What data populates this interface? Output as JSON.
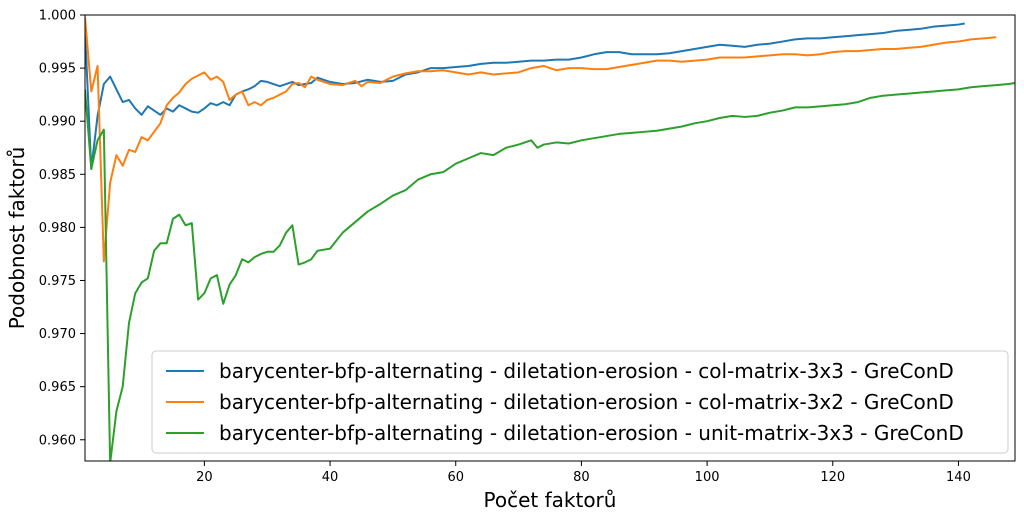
{
  "chart_data": {
    "type": "line",
    "xlabel": "Počet faktorů",
    "ylabel": "Podobnost faktorů",
    "xlim": [
      1,
      149
    ],
    "ylim": [
      0.958,
      1.0
    ],
    "xticks": [
      20,
      40,
      60,
      80,
      100,
      120,
      140
    ],
    "xtick_labels": [
      "20",
      "40",
      "60",
      "80",
      "100",
      "120",
      "140"
    ],
    "yticks": [
      0.96,
      0.965,
      0.97,
      0.975,
      0.98,
      0.985,
      0.99,
      0.995,
      1.0
    ],
    "ytick_labels": [
      "0.960",
      "0.965",
      "0.970",
      "0.975",
      "0.980",
      "0.985",
      "0.990",
      "0.995",
      "1.000"
    ],
    "grid": false,
    "legend_position": "lower-right",
    "colors": [
      "#1f77b4",
      "#ff7f0e",
      "#2ca02c"
    ],
    "series": [
      {
        "name": "barycenter-bfp-alternating - diletation-erosion - col-matrix-3x3 - GreConD",
        "color": "#1f77b4",
        "points": [
          [
            1,
            0.9985
          ],
          [
            2,
            0.9855
          ],
          [
            3,
            0.9905
          ],
          [
            4,
            0.9935
          ],
          [
            5,
            0.9942
          ],
          [
            6,
            0.993
          ],
          [
            7,
            0.9918
          ],
          [
            8,
            0.992
          ],
          [
            9,
            0.9912
          ],
          [
            10,
            0.9906
          ],
          [
            11,
            0.9914
          ],
          [
            12,
            0.991
          ],
          [
            13,
            0.9906
          ],
          [
            14,
            0.9912
          ],
          [
            15,
            0.9909
          ],
          [
            16,
            0.9915
          ],
          [
            17,
            0.9912
          ],
          [
            18,
            0.9909
          ],
          [
            19,
            0.9908
          ],
          [
            20,
            0.9912
          ],
          [
            21,
            0.9917
          ],
          [
            22,
            0.9915
          ],
          [
            23,
            0.9918
          ],
          [
            24,
            0.9915
          ],
          [
            25,
            0.9925
          ],
          [
            26,
            0.9928
          ],
          [
            27,
            0.993
          ],
          [
            28,
            0.9933
          ],
          [
            29,
            0.9938
          ],
          [
            30,
            0.9937
          ],
          [
            31,
            0.9935
          ],
          [
            32,
            0.9933
          ],
          [
            33,
            0.9935
          ],
          [
            34,
            0.9937
          ],
          [
            35,
            0.9934
          ],
          [
            36,
            0.9935
          ],
          [
            37,
            0.9936
          ],
          [
            38,
            0.9941
          ],
          [
            39,
            0.9939
          ],
          [
            40,
            0.9937
          ],
          [
            42,
            0.9935
          ],
          [
            44,
            0.9936
          ],
          [
            46,
            0.9939
          ],
          [
            48,
            0.9937
          ],
          [
            50,
            0.9938
          ],
          [
            52,
            0.9944
          ],
          [
            54,
            0.9946
          ],
          [
            56,
            0.995
          ],
          [
            58,
            0.995
          ],
          [
            60,
            0.9951
          ],
          [
            62,
            0.9952
          ],
          [
            64,
            0.9954
          ],
          [
            66,
            0.9955
          ],
          [
            68,
            0.9955
          ],
          [
            70,
            0.9956
          ],
          [
            72,
            0.9957
          ],
          [
            74,
            0.9957
          ],
          [
            76,
            0.9958
          ],
          [
            78,
            0.9958
          ],
          [
            80,
            0.996
          ],
          [
            82,
            0.9963
          ],
          [
            84,
            0.9965
          ],
          [
            86,
            0.9965
          ],
          [
            88,
            0.9963
          ],
          [
            90,
            0.9963
          ],
          [
            92,
            0.9963
          ],
          [
            94,
            0.9964
          ],
          [
            96,
            0.9966
          ],
          [
            98,
            0.9968
          ],
          [
            100,
            0.997
          ],
          [
            102,
            0.9972
          ],
          [
            104,
            0.9971
          ],
          [
            106,
            0.997
          ],
          [
            108,
            0.9972
          ],
          [
            110,
            0.9973
          ],
          [
            112,
            0.9975
          ],
          [
            114,
            0.9977
          ],
          [
            116,
            0.9978
          ],
          [
            118,
            0.9978
          ],
          [
            120,
            0.9979
          ],
          [
            122,
            0.998
          ],
          [
            124,
            0.9981
          ],
          [
            126,
            0.9982
          ],
          [
            128,
            0.9983
          ],
          [
            130,
            0.9985
          ],
          [
            132,
            0.9986
          ],
          [
            134,
            0.9987
          ],
          [
            136,
            0.9989
          ],
          [
            138,
            0.999
          ],
          [
            140,
            0.9991
          ],
          [
            141,
            0.9992
          ]
        ]
      },
      {
        "name": "barycenter-bfp-alternating - diletation-erosion - col-matrix-3x2 - GreConD",
        "color": "#ff7f0e",
        "points": [
          [
            1,
            0.9998
          ],
          [
            2,
            0.9928
          ],
          [
            3,
            0.9952
          ],
          [
            4,
            0.9768
          ],
          [
            5,
            0.9842
          ],
          [
            6,
            0.9868
          ],
          [
            7,
            0.9858
          ],
          [
            8,
            0.9873
          ],
          [
            9,
            0.9871
          ],
          [
            10,
            0.9885
          ],
          [
            11,
            0.9882
          ],
          [
            12,
            0.989
          ],
          [
            13,
            0.9898
          ],
          [
            14,
            0.9915
          ],
          [
            15,
            0.9922
          ],
          [
            16,
            0.9927
          ],
          [
            17,
            0.9935
          ],
          [
            18,
            0.994
          ],
          [
            19,
            0.9943
          ],
          [
            20,
            0.9946
          ],
          [
            21,
            0.9939
          ],
          [
            22,
            0.9942
          ],
          [
            23,
            0.9937
          ],
          [
            24,
            0.992
          ],
          [
            25,
            0.9925
          ],
          [
            26,
            0.9928
          ],
          [
            27,
            0.9915
          ],
          [
            28,
            0.9918
          ],
          [
            29,
            0.9915
          ],
          [
            30,
            0.992
          ],
          [
            31,
            0.9922
          ],
          [
            32,
            0.9925
          ],
          [
            33,
            0.9928
          ],
          [
            34,
            0.9935
          ],
          [
            35,
            0.9936
          ],
          [
            36,
            0.9932
          ],
          [
            37,
            0.9942
          ],
          [
            38,
            0.9939
          ],
          [
            39,
            0.9937
          ],
          [
            40,
            0.9935
          ],
          [
            42,
            0.9934
          ],
          [
            44,
            0.9938
          ],
          [
            45,
            0.9933
          ],
          [
            46,
            0.9937
          ],
          [
            48,
            0.9936
          ],
          [
            50,
            0.9942
          ],
          [
            52,
            0.9945
          ],
          [
            54,
            0.9947
          ],
          [
            56,
            0.9947
          ],
          [
            58,
            0.9948
          ],
          [
            60,
            0.9946
          ],
          [
            62,
            0.9944
          ],
          [
            64,
            0.9946
          ],
          [
            66,
            0.9944
          ],
          [
            68,
            0.9945
          ],
          [
            70,
            0.9946
          ],
          [
            72,
            0.995
          ],
          [
            74,
            0.9952
          ],
          [
            76,
            0.9948
          ],
          [
            78,
            0.995
          ],
          [
            80,
            0.995
          ],
          [
            82,
            0.9949
          ],
          [
            84,
            0.9949
          ],
          [
            86,
            0.9951
          ],
          [
            88,
            0.9953
          ],
          [
            90,
            0.9955
          ],
          [
            92,
            0.9957
          ],
          [
            94,
            0.9957
          ],
          [
            96,
            0.9956
          ],
          [
            98,
            0.9957
          ],
          [
            100,
            0.9958
          ],
          [
            102,
            0.996
          ],
          [
            104,
            0.996
          ],
          [
            106,
            0.996
          ],
          [
            108,
            0.9961
          ],
          [
            110,
            0.9962
          ],
          [
            112,
            0.9963
          ],
          [
            114,
            0.9963
          ],
          [
            116,
            0.9962
          ],
          [
            118,
            0.9963
          ],
          [
            120,
            0.9965
          ],
          [
            122,
            0.9966
          ],
          [
            124,
            0.9966
          ],
          [
            126,
            0.9967
          ],
          [
            128,
            0.9968
          ],
          [
            130,
            0.9968
          ],
          [
            132,
            0.9969
          ],
          [
            134,
            0.997
          ],
          [
            136,
            0.9972
          ],
          [
            138,
            0.9974
          ],
          [
            140,
            0.9975
          ],
          [
            142,
            0.9977
          ],
          [
            144,
            0.9978
          ],
          [
            146,
            0.9979
          ]
        ]
      },
      {
        "name": "barycenter-bfp-alternating - diletation-erosion - unit-matrix-3x3 - GreConD",
        "color": "#2ca02c",
        "points": [
          [
            1,
            0.993
          ],
          [
            2,
            0.9855
          ],
          [
            3,
            0.9882
          ],
          [
            4,
            0.9892
          ],
          [
            5,
            0.9578
          ],
          [
            6,
            0.9627
          ],
          [
            7,
            0.965
          ],
          [
            8,
            0.971
          ],
          [
            9,
            0.9738
          ],
          [
            10,
            0.9748
          ],
          [
            11,
            0.9752
          ],
          [
            12,
            0.9778
          ],
          [
            13,
            0.9785
          ],
          [
            14,
            0.9785
          ],
          [
            15,
            0.9808
          ],
          [
            16,
            0.9812
          ],
          [
            17,
            0.9802
          ],
          [
            18,
            0.9804
          ],
          [
            19,
            0.9732
          ],
          [
            20,
            0.9738
          ],
          [
            21,
            0.9752
          ],
          [
            22,
            0.9755
          ],
          [
            23,
            0.9728
          ],
          [
            24,
            0.9746
          ],
          [
            25,
            0.9755
          ],
          [
            26,
            0.977
          ],
          [
            27,
            0.9767
          ],
          [
            28,
            0.9772
          ],
          [
            29,
            0.9775
          ],
          [
            30,
            0.9777
          ],
          [
            31,
            0.9777
          ],
          [
            32,
            0.9783
          ],
          [
            33,
            0.9795
          ],
          [
            34,
            0.9802
          ],
          [
            35,
            0.9765
          ],
          [
            36,
            0.9767
          ],
          [
            37,
            0.977
          ],
          [
            38,
            0.9778
          ],
          [
            39,
            0.9779
          ],
          [
            40,
            0.978
          ],
          [
            42,
            0.9795
          ],
          [
            44,
            0.9805
          ],
          [
            46,
            0.9815
          ],
          [
            48,
            0.9822
          ],
          [
            50,
            0.983
          ],
          [
            52,
            0.9835
          ],
          [
            54,
            0.9845
          ],
          [
            56,
            0.985
          ],
          [
            58,
            0.9852
          ],
          [
            60,
            0.986
          ],
          [
            62,
            0.9865
          ],
          [
            64,
            0.987
          ],
          [
            66,
            0.9868
          ],
          [
            68,
            0.9875
          ],
          [
            70,
            0.9878
          ],
          [
            72,
            0.9882
          ],
          [
            73,
            0.9875
          ],
          [
            74,
            0.9878
          ],
          [
            76,
            0.988
          ],
          [
            78,
            0.9879
          ],
          [
            80,
            0.9882
          ],
          [
            82,
            0.9884
          ],
          [
            84,
            0.9886
          ],
          [
            86,
            0.9888
          ],
          [
            88,
            0.9889
          ],
          [
            90,
            0.989
          ],
          [
            92,
            0.9891
          ],
          [
            94,
            0.9893
          ],
          [
            96,
            0.9895
          ],
          [
            98,
            0.9898
          ],
          [
            100,
            0.99
          ],
          [
            102,
            0.9903
          ],
          [
            104,
            0.9905
          ],
          [
            106,
            0.9904
          ],
          [
            108,
            0.9905
          ],
          [
            110,
            0.9908
          ],
          [
            112,
            0.991
          ],
          [
            114,
            0.9913
          ],
          [
            116,
            0.9913
          ],
          [
            118,
            0.9914
          ],
          [
            120,
            0.9915
          ],
          [
            122,
            0.9916
          ],
          [
            124,
            0.9918
          ],
          [
            126,
            0.9922
          ],
          [
            128,
            0.9924
          ],
          [
            130,
            0.9925
          ],
          [
            132,
            0.9926
          ],
          [
            134,
            0.9927
          ],
          [
            136,
            0.9928
          ],
          [
            138,
            0.9929
          ],
          [
            140,
            0.993
          ],
          [
            142,
            0.9932
          ],
          [
            144,
            0.9933
          ],
          [
            146,
            0.9934
          ],
          [
            148,
            0.9935
          ],
          [
            149,
            0.9936
          ]
        ]
      }
    ]
  }
}
